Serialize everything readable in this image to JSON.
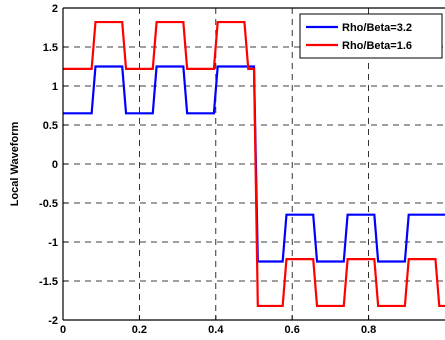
{
  "chart_data": {
    "type": "line",
    "title": "",
    "xlabel": "",
    "ylabel": "Local Waveform",
    "xlim": [
      0,
      1
    ],
    "ylim": [
      -2,
      2
    ],
    "grid": true,
    "legend_position": "top-right",
    "x_ticks": [
      {
        "value": 0,
        "label": "0"
      },
      {
        "value": 0.2,
        "label": "0.2"
      },
      {
        "value": 0.4,
        "label": "0.4"
      },
      {
        "value": 0.6,
        "label": "0.6"
      },
      {
        "value": 0.8,
        "label": "0.8"
      }
    ],
    "y_ticks": [
      {
        "value": 2,
        "label": "2"
      },
      {
        "value": 1.5,
        "label": "1.5"
      },
      {
        "value": 1,
        "label": "1"
      },
      {
        "value": 0.5,
        "label": "0.5"
      },
      {
        "value": 0,
        "label": "0"
      },
      {
        "value": -0.5,
        "label": "-0.5"
      },
      {
        "value": -1,
        "label": "-1"
      },
      {
        "value": -1.5,
        "label": "-1.5"
      },
      {
        "value": -2,
        "label": "-2"
      }
    ],
    "series": [
      {
        "name": "Rho/Beta=3.2",
        "color": "#0000ff",
        "x": [
          0,
          0.075,
          0.085,
          0.155,
          0.165,
          0.235,
          0.245,
          0.315,
          0.325,
          0.395,
          0.405,
          0.475,
          0.485,
          0.5,
          0.51,
          0.575,
          0.585,
          0.655,
          0.665,
          0.735,
          0.745,
          0.815,
          0.825,
          0.895,
          0.905,
          0.975,
          0.985,
          1.0
        ],
        "y": [
          0.65,
          0.65,
          1.25,
          1.25,
          0.65,
          0.65,
          1.25,
          1.25,
          0.65,
          0.65,
          1.25,
          1.25,
          1.25,
          1.25,
          -1.25,
          -1.25,
          -0.65,
          -0.65,
          -1.25,
          -1.25,
          -0.65,
          -0.65,
          -1.25,
          -1.25,
          -0.65,
          -0.65,
          -0.65,
          -0.65
        ]
      },
      {
        "name": "Rho/Beta=1.6",
        "color": "#ff0000",
        "x": [
          0,
          0.075,
          0.085,
          0.155,
          0.165,
          0.235,
          0.245,
          0.315,
          0.325,
          0.395,
          0.405,
          0.475,
          0.485,
          0.5,
          0.51,
          0.575,
          0.585,
          0.655,
          0.665,
          0.735,
          0.745,
          0.815,
          0.825,
          0.895,
          0.905,
          0.975,
          0.985,
          1.0
        ],
        "y": [
          1.22,
          1.22,
          1.82,
          1.82,
          1.22,
          1.22,
          1.82,
          1.82,
          1.22,
          1.22,
          1.82,
          1.82,
          1.22,
          1.22,
          -1.82,
          -1.82,
          -1.22,
          -1.22,
          -1.82,
          -1.82,
          -1.22,
          -1.22,
          -1.82,
          -1.82,
          -1.22,
          -1.22,
          -1.82,
          -1.82
        ]
      }
    ]
  }
}
